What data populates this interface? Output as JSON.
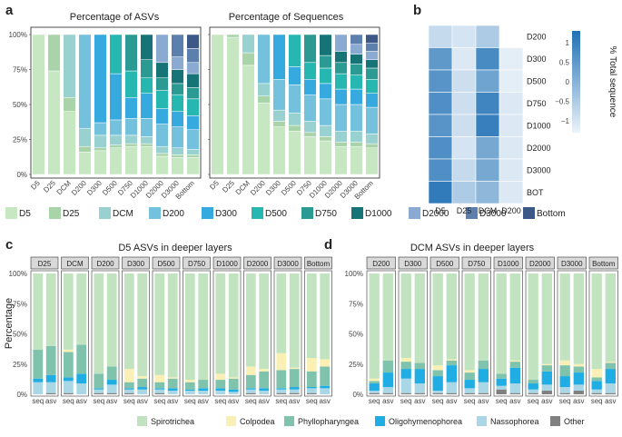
{
  "panel_labels": {
    "a": "a",
    "b": "b",
    "c": "c",
    "d": "d"
  },
  "colors": {
    "D5": "#c7e6c2",
    "D25": "#a9d3a9",
    "DCM": "#99d1d1",
    "D200": "#73c1dc",
    "D300": "#36a9df",
    "D500": "#26b8b0",
    "D750": "#2a9a92",
    "D1000": "#167476",
    "D2000": "#8aaad2",
    "D3000": "#5d7fae",
    "Bottom": "#3b5886",
    "Spirotrichea": "#c2e3c0",
    "Colpodea": "#faefb4",
    "Phyllopharyngea": "#7fc3ad",
    "Oligohymenophorea": "#1fade4",
    "Nassophorea": "#a9d7e6",
    "Other": "#808080"
  },
  "chart_data": [
    {
      "id": "a-left",
      "type": "bar",
      "stacked": true,
      "title": "Percentage of ASVs",
      "categories": [
        "D5",
        "D25",
        "DCM",
        "D200",
        "D300",
        "D500",
        "D750",
        "D1000",
        "D2000",
        "D3000",
        "Bottom"
      ],
      "yticks": [
        "0%",
        "25%",
        "50%",
        "75%",
        "100%"
      ],
      "ylim": [
        0,
        100
      ],
      "series": [
        {
          "name": "D5",
          "values": [
            100,
            74,
            45,
            16,
            17,
            19,
            20,
            20,
            13,
            12,
            12
          ]
        },
        {
          "name": "D25",
          "values": [
            0,
            26,
            10,
            4,
            2,
            2,
            2,
            2,
            2,
            2,
            2
          ]
        },
        {
          "name": "DCM",
          "values": [
            0,
            0,
            45,
            13,
            9,
            7,
            6,
            5,
            5,
            5,
            4
          ]
        },
        {
          "name": "D200",
          "values": [
            0,
            0,
            0,
            67,
            9,
            11,
            12,
            13,
            16,
            15,
            14
          ]
        },
        {
          "name": "D300",
          "values": [
            0,
            0,
            0,
            0,
            63,
            33,
            15,
            18,
            11,
            11,
            10
          ]
        },
        {
          "name": "D500",
          "values": [
            0,
            0,
            0,
            0,
            0,
            28,
            19,
            11,
            13,
            12,
            12
          ]
        },
        {
          "name": "D750",
          "values": [
            0,
            0,
            0,
            0,
            0,
            0,
            26,
            13,
            9,
            8,
            8
          ]
        },
        {
          "name": "D1000",
          "values": [
            0,
            0,
            0,
            0,
            0,
            0,
            0,
            18,
            11,
            10,
            10
          ]
        },
        {
          "name": "D2000",
          "values": [
            0,
            0,
            0,
            0,
            0,
            0,
            0,
            0,
            20,
            9,
            8
          ]
        },
        {
          "name": "D3000",
          "values": [
            0,
            0,
            0,
            0,
            0,
            0,
            0,
            0,
            0,
            16,
            10
          ]
        },
        {
          "name": "Bottom",
          "values": [
            0,
            0,
            0,
            0,
            0,
            0,
            0,
            0,
            0,
            0,
            10
          ]
        }
      ]
    },
    {
      "id": "a-right",
      "type": "bar",
      "stacked": true,
      "title": "Percentage of Sequences",
      "categories": [
        "D5",
        "D25",
        "DCM",
        "D200",
        "D300",
        "D500",
        "D750",
        "D1000",
        "D2000",
        "D3000",
        "Bottom"
      ],
      "ylim": [
        0,
        100
      ],
      "series": [
        {
          "name": "D5",
          "values": [
            100,
            98,
            78,
            51,
            34,
            31,
            27,
            24,
            20,
            20,
            19
          ]
        },
        {
          "name": "D25",
          "values": [
            0,
            2,
            9,
            5,
            4,
            4,
            3,
            3,
            3,
            3,
            3
          ]
        },
        {
          "name": "DCM",
          "values": [
            0,
            0,
            13,
            9,
            8,
            9,
            8,
            8,
            8,
            8,
            7
          ]
        },
        {
          "name": "D200",
          "values": [
            0,
            0,
            0,
            35,
            22,
            20,
            19,
            19,
            19,
            19,
            19
          ]
        },
        {
          "name": "D300",
          "values": [
            0,
            0,
            0,
            0,
            32,
            13,
            11,
            11,
            11,
            11,
            10
          ]
        },
        {
          "name": "D500",
          "values": [
            0,
            0,
            0,
            0,
            0,
            23,
            12,
            11,
            11,
            10,
            10
          ]
        },
        {
          "name": "D750",
          "values": [
            0,
            0,
            0,
            0,
            0,
            0,
            20,
            9,
            8,
            8,
            8
          ]
        },
        {
          "name": "D1000",
          "values": [
            0,
            0,
            0,
            0,
            0,
            0,
            0,
            15,
            8,
            7,
            6
          ]
        },
        {
          "name": "D2000",
          "values": [
            0,
            0,
            0,
            0,
            0,
            0,
            0,
            0,
            12,
            7,
            6
          ]
        },
        {
          "name": "D3000",
          "values": [
            0,
            0,
            0,
            0,
            0,
            0,
            0,
            0,
            0,
            7,
            6
          ]
        },
        {
          "name": "Bottom",
          "values": [
            0,
            0,
            0,
            0,
            0,
            0,
            0,
            0,
            0,
            0,
            6
          ]
        }
      ]
    },
    {
      "id": "a-legend",
      "type": "legend",
      "entries": [
        "D5",
        "D25",
        "DCM",
        "D200",
        "D300",
        "D500",
        "D750",
        "D1000",
        "D2000",
        "D3000",
        "Bottom"
      ]
    },
    {
      "id": "b",
      "type": "heatmap",
      "columns": [
        "D5",
        "D25",
        "DCM",
        "D200"
      ],
      "rows": [
        "D200",
        "D300",
        "D500",
        "D750",
        "D1000",
        "D2000",
        "D3000",
        "BOT"
      ],
      "values": [
        [
          -0.8,
          -1.0,
          -0.5,
          null
        ],
        [
          0.5,
          -1.1,
          0.8,
          -1.2
        ],
        [
          0.6,
          -0.9,
          0.3,
          -1.2
        ],
        [
          0.7,
          -0.9,
          0.9,
          -1.1
        ],
        [
          0.6,
          -0.9,
          1.0,
          -1.1
        ],
        [
          0.7,
          -1.0,
          0.2,
          -1.1
        ],
        [
          0.7,
          -0.8,
          0.2,
          -1.1
        ],
        [
          1.1,
          -0.5,
          -0.1,
          -1.1
        ]
      ],
      "colorbar_title": "% Total sequence",
      "colorbar_ticks": [
        "1",
        "0.5",
        "0",
        "−0.5",
        "−1"
      ],
      "range": [
        -1.3,
        1.3
      ]
    },
    {
      "id": "c",
      "type": "bar",
      "stacked": true,
      "faceted": true,
      "title": "D5 ASVs in deeper layers",
      "ylabel": "Percentage",
      "yticks": [
        "0%",
        "25%",
        "50%",
        "75%",
        "100%"
      ],
      "ylim": [
        0,
        100
      ],
      "facets": [
        "D25",
        "DCM",
        "D200",
        "D300",
        "D500",
        "D750",
        "D1000",
        "D2000",
        "D3000",
        "Bottom"
      ],
      "bar_labels": [
        "seq",
        "asv"
      ],
      "stack_order": [
        "Other",
        "Nassophorea",
        "Oligohymenophorea",
        "Phyllopharyngea",
        "Colpodea",
        "Spirotrichea"
      ],
      "values": [
        [
          [
            0,
            10,
            3,
            24,
            0,
            63
          ],
          [
            1,
            9,
            6,
            24,
            0,
            60
          ]
        ],
        [
          [
            1,
            10,
            3,
            21,
            2,
            63
          ],
          [
            0,
            9,
            8,
            24,
            0,
            59
          ]
        ],
        [
          [
            1,
            3,
            1,
            12,
            0,
            83
          ],
          [
            1,
            7,
            4,
            11,
            0,
            77
          ]
        ],
        [
          [
            1,
            3,
            1,
            5,
            11,
            79
          ],
          [
            0,
            4,
            2,
            7,
            2,
            85
          ]
        ],
        [
          [
            1,
            3,
            1,
            5,
            6,
            84
          ],
          [
            0,
            3,
            2,
            8,
            1,
            86
          ]
        ],
        [
          [
            0,
            3,
            1,
            6,
            2,
            88
          ],
          [
            0,
            3,
            2,
            7,
            0,
            88
          ]
        ],
        [
          [
            0,
            3,
            2,
            7,
            5,
            83
          ],
          [
            0,
            2,
            2,
            9,
            1,
            86
          ]
        ],
        [
          [
            1,
            3,
            1,
            11,
            7,
            77
          ],
          [
            0,
            3,
            2,
            14,
            2,
            79
          ]
        ],
        [
          [
            1,
            3,
            1,
            15,
            14,
            66
          ],
          [
            1,
            3,
            2,
            15,
            1,
            78
          ]
        ],
        [
          [
            1,
            4,
            1,
            13,
            11,
            70
          ],
          [
            0,
            5,
            2,
            16,
            6,
            71
          ]
        ]
      ]
    },
    {
      "id": "d",
      "type": "bar",
      "stacked": true,
      "faceted": true,
      "title": "DCM ASVs in deeper layers",
      "yticks": [
        "0%",
        "25%",
        "50%",
        "75%",
        "100%"
      ],
      "ylim": [
        0,
        100
      ],
      "facets": [
        "D200",
        "D300",
        "D500",
        "D750",
        "D1000",
        "D2000",
        "D3000",
        "Bottom"
      ],
      "bar_labels": [
        "seq",
        "asv"
      ],
      "stack_order": [
        "Other",
        "Nassophorea",
        "Oligohymenophorea",
        "Phyllopharyngea",
        "Colpodea",
        "Spirotrichea"
      ],
      "values": [
        [
          [
            1,
            2,
            6,
            2,
            2,
            87
          ],
          [
            1,
            5,
            12,
            10,
            0,
            72
          ]
        ],
        [
          [
            1,
            12,
            8,
            6,
            3,
            70
          ],
          [
            1,
            8,
            12,
            5,
            0,
            74
          ]
        ],
        [
          [
            1,
            2,
            12,
            5,
            4,
            76
          ],
          [
            1,
            9,
            14,
            4,
            1,
            71
          ]
        ],
        [
          [
            1,
            4,
            7,
            6,
            2,
            80
          ],
          [
            1,
            9,
            11,
            7,
            0,
            72
          ]
        ],
        [
          [
            4,
            3,
            6,
            4,
            0,
            83
          ],
          [
            1,
            8,
            13,
            5,
            1,
            72
          ]
        ],
        [
          [
            1,
            3,
            5,
            3,
            0,
            88
          ],
          [
            3,
            5,
            11,
            5,
            1,
            75
          ]
        ],
        [
          [
            1,
            5,
            9,
            9,
            4,
            72
          ],
          [
            3,
            5,
            10,
            5,
            2,
            75
          ]
        ],
        [
          [
            1,
            3,
            7,
            3,
            7,
            79
          ],
          [
            1,
            8,
            12,
            5,
            1,
            73
          ]
        ]
      ]
    },
    {
      "id": "cd-legend",
      "type": "legend",
      "entries": [
        "Spirotrichea",
        "Colpodea",
        "Phyllopharyngea",
        "Oligohymenophorea",
        "Nassophorea",
        "Other"
      ]
    }
  ]
}
